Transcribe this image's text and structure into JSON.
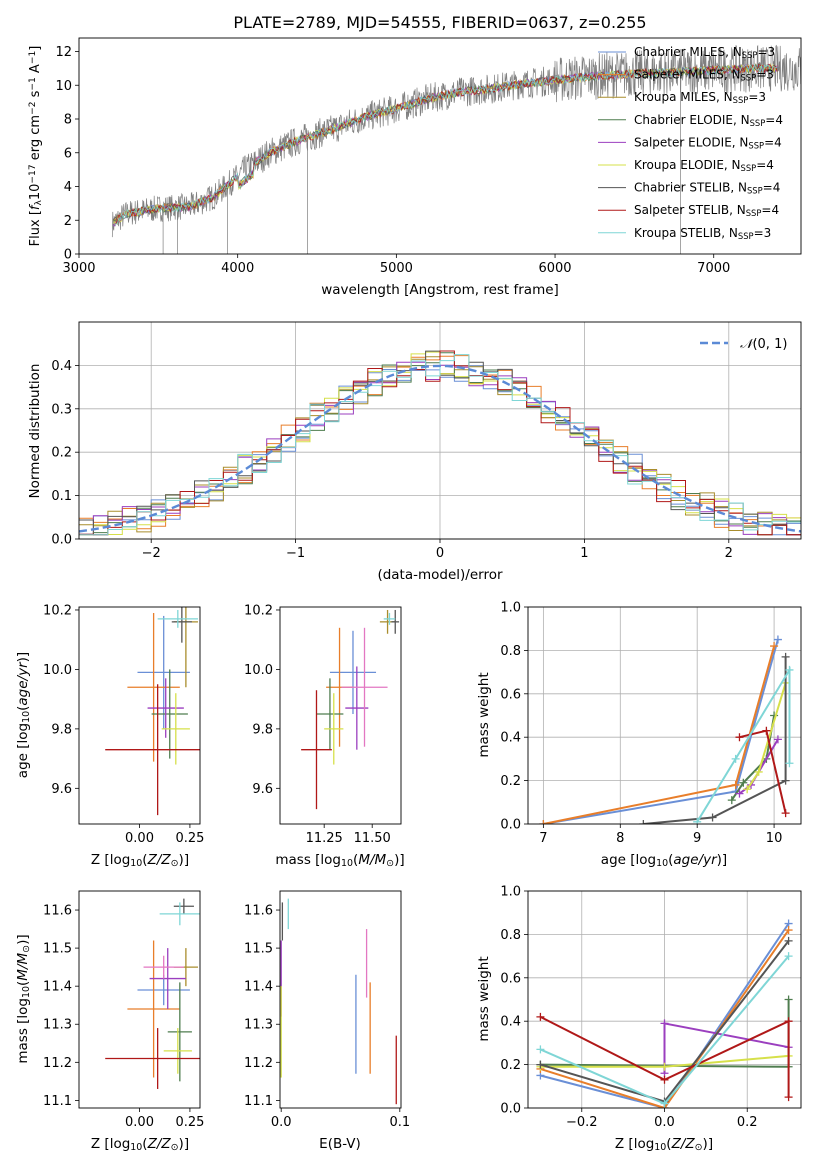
{
  "title": "PLATE=2789, MJD=54555, FIBERID=0637, z=0.255",
  "legend": [
    {
      "label": "Chabrier MILES, N",
      "sub": "SSP",
      "tail": "=3",
      "color": "#6a8fd6"
    },
    {
      "label": "Salpeter MILES, N",
      "sub": "SSP",
      "tail": "=3",
      "color": "#e87e2a"
    },
    {
      "label": "Kroupa MILES, N",
      "sub": "SSP",
      "tail": "=3",
      "color": "#a98d2d"
    },
    {
      "label": "Chabrier ELODIE, N",
      "sub": "SSP",
      "tail": "=4",
      "color": "#4f7d4f"
    },
    {
      "label": "Salpeter ELODIE, N",
      "sub": "SSP",
      "tail": "=4",
      "color": "#9b3fbf"
    },
    {
      "label": "Kroupa ELODIE, N",
      "sub": "SSP",
      "tail": "=4",
      "color": "#d6e04a"
    },
    {
      "label": "Chabrier STELIB, N",
      "sub": "SSP",
      "tail": "=4",
      "color": "#555555"
    },
    {
      "label": "Salpeter STELIB, N",
      "sub": "SSP",
      "tail": "=4",
      "color": "#b01818"
    },
    {
      "label": "Kroupa STELIB, N",
      "sub": "SSP",
      "tail": "=3",
      "color": "#7fd6d6"
    }
  ],
  "chart_data": [
    {
      "type": "line",
      "name": "spectrum",
      "xlabel": "wavelength [Angstrom, rest frame]",
      "ylabel": "Flux [f_λ 10^-17 erg cm^-2 s^-1 A^-1]",
      "xlim": [
        3000,
        7550
      ],
      "ylim": [
        0,
        12.8
      ],
      "xticks": [
        3000,
        4000,
        5000,
        6000,
        7000
      ],
      "yticks": [
        0,
        2,
        4,
        6,
        8,
        10,
        12
      ],
      "continuum": [
        [
          3210,
          1.8
        ],
        [
          3300,
          2.4
        ],
        [
          3500,
          2.7
        ],
        [
          3700,
          2.8
        ],
        [
          3850,
          3.4
        ],
        [
          3950,
          4.2
        ],
        [
          4050,
          5.0
        ],
        [
          4200,
          6.0
        ],
        [
          4400,
          6.8
        ],
        [
          4600,
          7.4
        ],
        [
          4800,
          8.1
        ],
        [
          5000,
          8.6
        ],
        [
          5200,
          9.2
        ],
        [
          5400,
          9.6
        ],
        [
          5600,
          9.8
        ],
        [
          5800,
          10.1
        ],
        [
          6000,
          10.3
        ],
        [
          6200,
          10.5
        ],
        [
          6500,
          10.7
        ],
        [
          6800,
          10.8
        ],
        [
          7000,
          10.9
        ],
        [
          7300,
          11.0
        ]
      ]
    },
    {
      "type": "step",
      "name": "residuals",
      "xlabel": "(data-model)/error",
      "ylabel": "Normed distribution",
      "xlim": [
        -2.5,
        2.5
      ],
      "ylim": [
        0,
        0.5
      ],
      "xticks": [
        -2,
        -1,
        0,
        1,
        2
      ],
      "yticks": [
        0.0,
        0.1,
        0.2,
        0.3,
        0.4
      ],
      "gaussian_label": "N(0,1)",
      "grid": true
    },
    {
      "type": "errorbar",
      "name": "age-vs-Z",
      "xlabel": "Z [log10(Z/Z⊙)]",
      "ylabel": "age  [log10(age/yr)]",
      "xlim": [
        -0.3,
        0.3
      ],
      "ylim": [
        9.48,
        10.21
      ],
      "xticks": [
        0.0,
        0.25
      ],
      "yticks": [
        9.6,
        9.8,
        10.0,
        10.2
      ],
      "points": [
        {
          "x": 0.12,
          "xerr": 0.13,
          "y": 9.99,
          "yerr": 0.19,
          "color": "#6a8fd6"
        },
        {
          "x": 0.07,
          "xerr": 0.13,
          "y": 9.94,
          "yerr": 0.25,
          "color": "#e87e2a"
        },
        {
          "x": 0.23,
          "xerr": 0.06,
          "y": 10.16,
          "yerr": 0.22,
          "color": "#a98d2d"
        },
        {
          "x": 0.15,
          "xerr": 0.09,
          "y": 9.85,
          "yerr": 0.15,
          "color": "#4f7d4f"
        },
        {
          "x": 0.13,
          "xerr": 0.09,
          "y": 9.87,
          "yerr": 0.1,
          "color": "#9b3fbf"
        },
        {
          "x": 0.18,
          "xerr": 0.07,
          "y": 9.8,
          "yerr": 0.12,
          "color": "#d6e04a"
        },
        {
          "x": 0.21,
          "xerr": 0.05,
          "y": 10.16,
          "yerr": 0.07,
          "color": "#555555"
        },
        {
          "x": 0.09,
          "xerr": 0.26,
          "y": 9.73,
          "yerr": 0.22,
          "color": "#b01818"
        },
        {
          "x": 0.19,
          "xerr": 0.1,
          "y": 10.17,
          "yerr": 0.03,
          "color": "#7fd6d6"
        }
      ]
    },
    {
      "type": "errorbar",
      "name": "age-vs-mass",
      "xlabel": "mass [log10(M/M⊙)]",
      "ylabel": "",
      "xlim": [
        11.02,
        11.65
      ],
      "ylim": [
        9.48,
        10.21
      ],
      "xticks": [
        11.25,
        11.5
      ],
      "yticks": [
        9.6,
        9.8,
        10.0,
        10.2
      ],
      "points": [
        {
          "x": 11.4,
          "xerr": 0.12,
          "y": 9.99,
          "yerr": 0.14,
          "color": "#6a8fd6"
        },
        {
          "x": 11.33,
          "xerr": 0.07,
          "y": 9.94,
          "yerr": 0.2,
          "color": "#e87e2a"
        },
        {
          "x": 11.58,
          "xerr": 0.04,
          "y": 10.16,
          "yerr": 0.04,
          "color": "#a98d2d"
        },
        {
          "x": 11.28,
          "xerr": 0.07,
          "y": 9.85,
          "yerr": 0.12,
          "color": "#4f7d4f"
        },
        {
          "x": 11.42,
          "xerr": 0.06,
          "y": 9.87,
          "yerr": 0.14,
          "color": "#9b3fbf"
        },
        {
          "x": 11.3,
          "xerr": 0.05,
          "y": 9.8,
          "yerr": 0.12,
          "color": "#d6e04a"
        },
        {
          "x": 11.62,
          "xerr": 0.02,
          "y": 10.16,
          "yerr": 0.04,
          "color": "#555555"
        },
        {
          "x": 11.21,
          "xerr": 0.08,
          "y": 9.73,
          "yerr": 0.2,
          "color": "#b01818"
        },
        {
          "x": 11.59,
          "xerr": 0.03,
          "y": 10.17,
          "yerr": 0.02,
          "color": "#7fd6d6"
        },
        {
          "x": 11.46,
          "xerr": 0.12,
          "y": 9.94,
          "yerr": 0.2,
          "color": "#e377c2"
        }
      ]
    },
    {
      "type": "line",
      "name": "mass-weight-vs-age",
      "xlabel": "age  [log10(age/yr)]",
      "ylabel": "mass weight",
      "xlim": [
        6.8,
        10.35
      ],
      "ylim": [
        0,
        1
      ],
      "xticks": [
        7,
        8,
        9,
        10
      ],
      "yticks": [
        0.0,
        0.2,
        0.4,
        0.6,
        0.8,
        1.0
      ],
      "grid": true,
      "series": [
        {
          "color": "#6a8fd6",
          "points": [
            [
              7.0,
              0.0
            ],
            [
              9.5,
              0.15
            ],
            [
              10.05,
              0.85
            ]
          ]
        },
        {
          "color": "#e87e2a",
          "points": [
            [
              7.0,
              0.0
            ],
            [
              9.5,
              0.18
            ],
            [
              10.0,
              0.82
            ]
          ]
        },
        {
          "color": "#4f7d4f",
          "points": [
            [
              9.45,
              0.11
            ],
            [
              9.6,
              0.19
            ],
            [
              9.9,
              0.3
            ],
            [
              10.0,
              0.5
            ]
          ]
        },
        {
          "color": "#9b3fbf",
          "points": [
            [
              9.55,
              0.14
            ],
            [
              9.7,
              0.18
            ],
            [
              10.05,
              0.39
            ]
          ]
        },
        {
          "color": "#d6e04a",
          "points": [
            [
              9.65,
              0.16
            ],
            [
              9.8,
              0.24
            ],
            [
              10.15,
              0.65
            ]
          ]
        },
        {
          "color": "#555555",
          "points": [
            [
              8.3,
              0.0
            ],
            [
              9.2,
              0.03
            ],
            [
              10.15,
              0.2
            ],
            [
              10.15,
              0.77
            ]
          ]
        },
        {
          "color": "#b01818",
          "points": [
            [
              9.55,
              0.4
            ],
            [
              9.9,
              0.43
            ],
            [
              10.15,
              0.05
            ]
          ]
        },
        {
          "color": "#7fd6d6",
          "points": [
            [
              9.0,
              0.01
            ],
            [
              9.5,
              0.3
            ],
            [
              10.2,
              0.71
            ],
            [
              10.2,
              0.28
            ]
          ]
        }
      ]
    },
    {
      "type": "errorbar",
      "name": "mass-vs-Z",
      "xlabel": "Z [log10(Z/Z⊙)]",
      "ylabel": "mass [log10(M/M⊙)]",
      "xlim": [
        -0.3,
        0.3
      ],
      "ylim": [
        11.08,
        11.65
      ],
      "xticks": [
        0.0,
        0.25
      ],
      "yticks": [
        11.1,
        11.2,
        11.3,
        11.4,
        11.5,
        11.6
      ],
      "points": [
        {
          "x": 0.12,
          "xerr": 0.13,
          "y": 11.39,
          "yerr": 0.04,
          "color": "#6a8fd6"
        },
        {
          "x": 0.07,
          "xerr": 0.13,
          "y": 11.34,
          "yerr": 0.18,
          "color": "#e87e2a"
        },
        {
          "x": 0.23,
          "xerr": 0.06,
          "y": 11.45,
          "yerr": 0.05,
          "color": "#a98d2d"
        },
        {
          "x": 0.2,
          "xerr": 0.06,
          "y": 11.28,
          "yerr": 0.13,
          "color": "#4f7d4f"
        },
        {
          "x": 0.14,
          "xerr": 0.09,
          "y": 11.42,
          "yerr": 0.08,
          "color": "#9b3fbf"
        },
        {
          "x": 0.19,
          "xerr": 0.07,
          "y": 11.23,
          "yerr": 0.06,
          "color": "#d6e04a"
        },
        {
          "x": 0.22,
          "xerr": 0.05,
          "y": 11.61,
          "yerr": 0.02,
          "color": "#555555"
        },
        {
          "x": 0.09,
          "xerr": 0.26,
          "y": 11.21,
          "yerr": 0.08,
          "color": "#b01818"
        },
        {
          "x": 0.2,
          "xerr": 0.1,
          "y": 11.59,
          "yerr": 0.03,
          "color": "#7fd6d6"
        },
        {
          "x": 0.12,
          "xerr": 0.1,
          "y": 11.45,
          "yerr": 0.03,
          "color": "#e377c2"
        }
      ]
    },
    {
      "type": "errorbar",
      "name": "mass-vs-EBV",
      "xlabel": "E(B-V)",
      "ylabel": "",
      "xlim": [
        -0.001,
        0.101
      ],
      "ylim": [
        11.08,
        11.65
      ],
      "xticks": [
        0.0,
        0.1
      ],
      "yticks": [
        11.1,
        11.2,
        11.3,
        11.4,
        11.5,
        11.6
      ],
      "points": [
        {
          "x": 0.063,
          "y": 11.3,
          "yerr": 0.13,
          "color": "#6a8fd6"
        },
        {
          "x": 0.075,
          "y": 11.29,
          "yerr": 0.12,
          "color": "#e87e2a"
        },
        {
          "x": 0.072,
          "y": 11.46,
          "yerr": 0.09,
          "color": "#e377c2"
        },
        {
          "x": 0.001,
          "y": 11.57,
          "yerr": 0.05,
          "color": "#555555"
        },
        {
          "x": 0.0,
          "y": 11.42,
          "yerr": 0.1,
          "color": "#9b3fbf"
        },
        {
          "x": 0.0,
          "y": 11.28,
          "yerr": 0.12,
          "color": "#d6e04a"
        },
        {
          "x": 0.097,
          "y": 11.18,
          "yerr": 0.09,
          "color": "#b01818"
        },
        {
          "x": 0.006,
          "y": 11.59,
          "yerr": 0.04,
          "color": "#7fd6d6"
        }
      ]
    },
    {
      "type": "line",
      "name": "mass-weight-vs-Z",
      "xlabel": "Z [log10(Z/Z⊙)]",
      "ylabel": "mass weight",
      "xlim": [
        -0.33,
        0.33
      ],
      "ylim": [
        0,
        1
      ],
      "xticks": [
        -0.2,
        0.0,
        0.2
      ],
      "yticks": [
        0.0,
        0.2,
        0.4,
        0.6,
        0.8,
        1.0
      ],
      "grid": true,
      "series": [
        {
          "color": "#6a8fd6",
          "points": [
            [
              -0.3,
              0.15
            ],
            [
              0.0,
              0.0
            ],
            [
              0.3,
              0.85
            ]
          ]
        },
        {
          "color": "#e87e2a",
          "points": [
            [
              -0.3,
              0.18
            ],
            [
              0.0,
              0.0
            ],
            [
              0.3,
              0.82
            ]
          ]
        },
        {
          "color": "#4f7d4f",
          "points": [
            [
              -0.3,
              0.2
            ],
            [
              0.3,
              0.19
            ],
            [
              0.3,
              0.5
            ]
          ]
        },
        {
          "color": "#9b3fbf",
          "points": [
            [
              0.0,
              0.16
            ],
            [
              0.0,
              0.39
            ],
            [
              0.3,
              0.28
            ]
          ]
        },
        {
          "color": "#d6e04a",
          "points": [
            [
              -0.3,
              0.19
            ],
            [
              0.0,
              0.19
            ],
            [
              0.3,
              0.24
            ]
          ]
        },
        {
          "color": "#555555",
          "points": [
            [
              -0.3,
              0.2
            ],
            [
              0.0,
              0.03
            ],
            [
              0.3,
              0.77
            ]
          ]
        },
        {
          "color": "#b01818",
          "points": [
            [
              -0.3,
              0.42
            ],
            [
              0.0,
              0.13
            ],
            [
              0.3,
              0.4
            ],
            [
              0.3,
              0.05
            ]
          ]
        },
        {
          "color": "#7fd6d6",
          "points": [
            [
              -0.3,
              0.27
            ],
            [
              0.0,
              0.02
            ],
            [
              0.3,
              0.7
            ]
          ]
        }
      ]
    }
  ]
}
